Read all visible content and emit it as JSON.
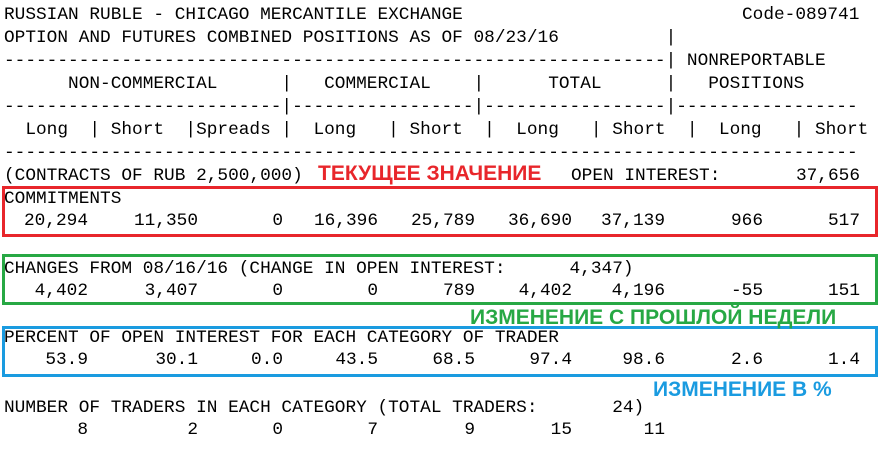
{
  "header": {
    "title": "RUSSIAN RUBLE - CHICAGO MERCANTILE EXCHANGE",
    "code": "Code-089741",
    "subtitle": "OPTION AND FUTURES COMBINED POSITIONS AS OF 08/23/16          |"
  },
  "column_header": [
    "--------------------------------------------------------------| NONREPORTABLE",
    "      NON-COMMERCIAL      |   COMMERCIAL    |      TOTAL      |   POSITIONS",
    "--------------------------|-----------------|-----------------|-----------------",
    "  Long  | Short  |Spreads |  Long   | Short  |  Long   | Short  |  Long   | Short",
    "--------------------------------------------------------------------------------"
  ],
  "contracts": {
    "unit": "(CONTRACTS OF RUB 2,500,000)",
    "open_interest_label": "OPEN INTEREST:",
    "open_interest": "37,656"
  },
  "sections": [
    {
      "title": "COMMITMENTS",
      "values": [
        "20,294",
        "11,350",
        "0",
        "16,396",
        "25,789",
        "36,690",
        "37,139",
        "966",
        "517"
      ]
    },
    {
      "title": "CHANGES FROM 08/16/16 (CHANGE IN OPEN INTEREST:      4,347)",
      "values": [
        "4,402",
        "3,407",
        "0",
        "0",
        "789",
        "4,402",
        "4,196",
        "-55",
        "151"
      ]
    },
    {
      "title": "PERCENT OF OPEN INTEREST FOR EACH CATEGORY OF TRADER",
      "values": [
        "53.9",
        "30.1",
        "0.0",
        "43.5",
        "68.5",
        "97.4",
        "98.6",
        "2.6",
        "1.4"
      ]
    },
    {
      "title": "NUMBER OF TRADERS IN EACH CATEGORY (TOTAL TRADERS:       24)",
      "values": [
        "8",
        "2",
        "0",
        "7",
        "9",
        "15",
        "11"
      ]
    }
  ],
  "annotations": {
    "current": "ТЕКУЩЕЕ ЗНАЧЕНИЕ",
    "weekly_change": "ИЗМЕНЕНИЕ С ПРОШЛОЙ НЕДЕЛИ",
    "percent_change": "ИЗМЕНЕНИЕ В %"
  }
}
